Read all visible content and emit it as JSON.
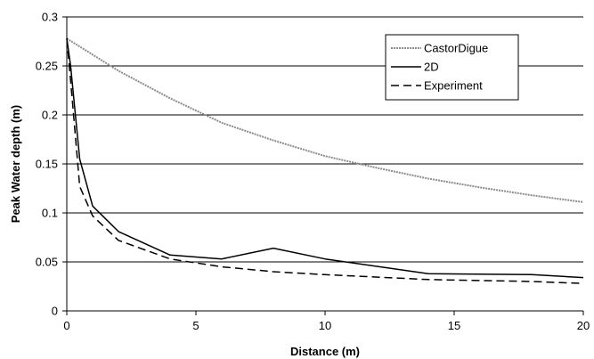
{
  "chart_data": {
    "type": "line",
    "xlabel": "Distance (m)",
    "ylabel": "Peak Water depth (m)",
    "xlim": [
      0,
      20
    ],
    "ylim": [
      0,
      0.3
    ],
    "x_ticks": [
      0,
      5,
      10,
      15,
      20
    ],
    "y_ticks": [
      0,
      0.05,
      0.1,
      0.15,
      0.2,
      0.25,
      0.3
    ],
    "x_tick_labels": [
      "0",
      "5",
      "10",
      "15",
      "20"
    ],
    "y_tick_labels": [
      "0",
      "0.05",
      "0.1",
      "0.15",
      "0.2",
      "0.25",
      "0.3"
    ],
    "grid": "horizontal",
    "legend_position": "top-right",
    "series": [
      {
        "name": "CastorDigue",
        "style": "dotted",
        "color": "#8c8c8c",
        "points": [
          [
            0,
            0.278
          ],
          [
            2,
            0.245
          ],
          [
            4,
            0.217
          ],
          [
            6,
            0.192
          ],
          [
            8,
            0.174
          ],
          [
            10,
            0.158
          ],
          [
            12,
            0.146
          ],
          [
            14,
            0.135
          ],
          [
            16,
            0.126
          ],
          [
            18,
            0.118
          ],
          [
            20,
            0.111
          ]
        ]
      },
      {
        "name": "2D",
        "style": "solid",
        "color": "#000000",
        "points": [
          [
            0,
            0.278
          ],
          [
            0.15,
            0.25
          ],
          [
            0.5,
            0.155
          ],
          [
            1,
            0.107
          ],
          [
            2,
            0.081
          ],
          [
            4,
            0.057
          ],
          [
            6,
            0.053
          ],
          [
            8,
            0.064
          ],
          [
            10,
            0.053
          ],
          [
            14,
            0.038
          ],
          [
            18,
            0.037
          ],
          [
            20,
            0.034
          ]
        ]
      },
      {
        "name": "Experiment",
        "style": "dashed",
        "color": "#000000",
        "points": [
          [
            0,
            0.278
          ],
          [
            0.15,
            0.235
          ],
          [
            0.5,
            0.127
          ],
          [
            1,
            0.097
          ],
          [
            2,
            0.072
          ],
          [
            4,
            0.053
          ],
          [
            6,
            0.045
          ],
          [
            8,
            0.04
          ],
          [
            10,
            0.037
          ],
          [
            14,
            0.032
          ],
          [
            18,
            0.03
          ],
          [
            20,
            0.028
          ]
        ]
      }
    ]
  }
}
